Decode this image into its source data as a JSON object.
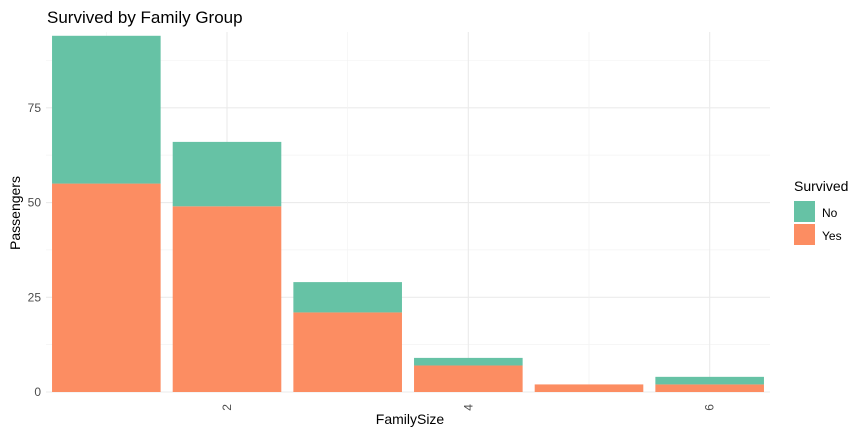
{
  "chart_data": {
    "type": "bar",
    "stacked": true,
    "title": "Survived by Family Group",
    "xlabel": "FamilySize",
    "ylabel": "Passengers",
    "x": [
      1,
      2,
      3,
      4,
      5,
      6
    ],
    "x_tick_labels": [
      "2",
      "4",
      "6"
    ],
    "x_tick_values": [
      2,
      4,
      6
    ],
    "x_tick_rotation": -90,
    "xlim": [
      0.5,
      6.5
    ],
    "ylim": [
      0,
      95
    ],
    "y_ticks": [
      0,
      25,
      50,
      75
    ],
    "grid": true,
    "legend_title": "Survived",
    "legend_position": "right",
    "series": [
      {
        "name": "Yes",
        "color": "#fc8d62",
        "values": [
          55,
          49,
          21,
          7,
          2,
          2
        ]
      },
      {
        "name": "No",
        "color": "#66c2a5",
        "values": [
          39,
          17,
          8,
          2,
          0,
          2
        ]
      }
    ],
    "legend": [
      {
        "name": "No",
        "color": "#66c2a5"
      },
      {
        "name": "Yes",
        "color": "#fc8d62"
      }
    ]
  }
}
